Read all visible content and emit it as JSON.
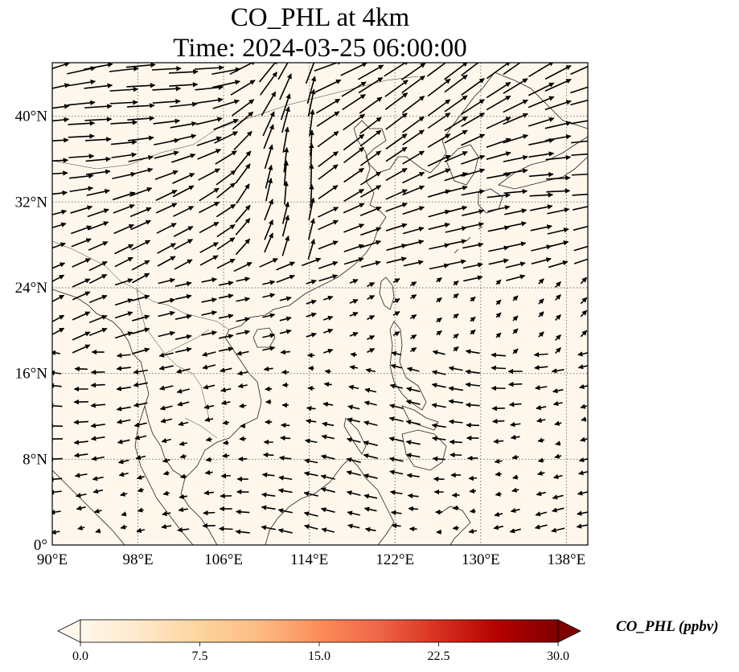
{
  "title": {
    "line1": "CO_PHL at 4km",
    "line2": "Time: 2024-03-25 06:00:00"
  },
  "map": {
    "extent": {
      "lon": [
        90,
        140
      ],
      "lat": [
        0,
        45
      ]
    },
    "background_color": "#fff7ec",
    "gridline_style": "dotted",
    "lon_ticks": [
      {
        "value": 90,
        "label": "90°E"
      },
      {
        "value": 98,
        "label": "98°E"
      },
      {
        "value": 106,
        "label": "106°E"
      },
      {
        "value": 114,
        "label": "114°E"
      },
      {
        "value": 122,
        "label": "122°E"
      },
      {
        "value": 130,
        "label": "130°E"
      },
      {
        "value": 138,
        "label": "138°E"
      }
    ],
    "lat_ticks": [
      {
        "value": 0,
        "label": "0°"
      },
      {
        "value": 8,
        "label": "8°N"
      },
      {
        "value": 16,
        "label": "16°N"
      },
      {
        "value": 24,
        "label": "24°N"
      },
      {
        "value": 32,
        "label": "32°N"
      },
      {
        "value": 40,
        "label": "40°N"
      }
    ],
    "wind_vectors_legend": "none"
  },
  "colorbar": {
    "label": "CO_PHL (ppbv)",
    "min": 0.0,
    "max": 30.0,
    "ticks": [
      "0.0",
      "7.5",
      "15.0",
      "22.5",
      "30.0"
    ],
    "colors": [
      "#fff7ec",
      "#fee8c8",
      "#fdd49e",
      "#fdbb84",
      "#fc8d59",
      "#ef6548",
      "#d7301f",
      "#b30000",
      "#7f0000"
    ],
    "extend": "both"
  }
}
